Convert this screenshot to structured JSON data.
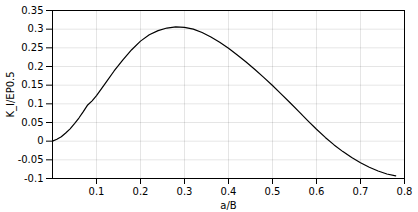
{
  "chart_data": {
    "type": "line",
    "xlabel": "a/B",
    "ylabel": "K_I/EP0.5",
    "x": [
      0.0,
      0.01,
      0.02,
      0.03,
      0.04,
      0.05,
      0.06,
      0.07,
      0.08,
      0.09,
      0.1,
      0.12,
      0.14,
      0.16,
      0.18,
      0.2,
      0.22,
      0.24,
      0.26,
      0.28,
      0.3,
      0.32,
      0.34,
      0.36,
      0.38,
      0.4,
      0.42,
      0.44,
      0.46,
      0.48,
      0.5,
      0.52,
      0.54,
      0.56,
      0.58,
      0.6,
      0.62,
      0.64,
      0.66,
      0.68,
      0.7,
      0.72,
      0.74,
      0.76,
      0.78
    ],
    "values": [
      0.0,
      0.005,
      0.012,
      0.022,
      0.033,
      0.047,
      0.062,
      0.079,
      0.097,
      0.108,
      0.122,
      0.155,
      0.188,
      0.218,
      0.245,
      0.268,
      0.285,
      0.296,
      0.303,
      0.306,
      0.305,
      0.3,
      0.291,
      0.279,
      0.265,
      0.249,
      0.231,
      0.212,
      0.192,
      0.171,
      0.149,
      0.126,
      0.103,
      0.079,
      0.055,
      0.032,
      0.01,
      -0.01,
      -0.028,
      -0.044,
      -0.058,
      -0.07,
      -0.08,
      -0.088,
      -0.093
    ],
    "color": "#000000",
    "xlim": [
      0,
      0.8
    ],
    "ylim": [
      -0.1,
      0.35
    ],
    "xticks": [
      0.1,
      0.2,
      0.3,
      0.4,
      0.5,
      0.6,
      0.7,
      0.8
    ],
    "yticks": [
      -0.1,
      -0.05,
      0,
      0.05,
      0.1,
      0.15,
      0.2,
      0.25,
      0.3,
      0.35
    ],
    "grid": true
  }
}
